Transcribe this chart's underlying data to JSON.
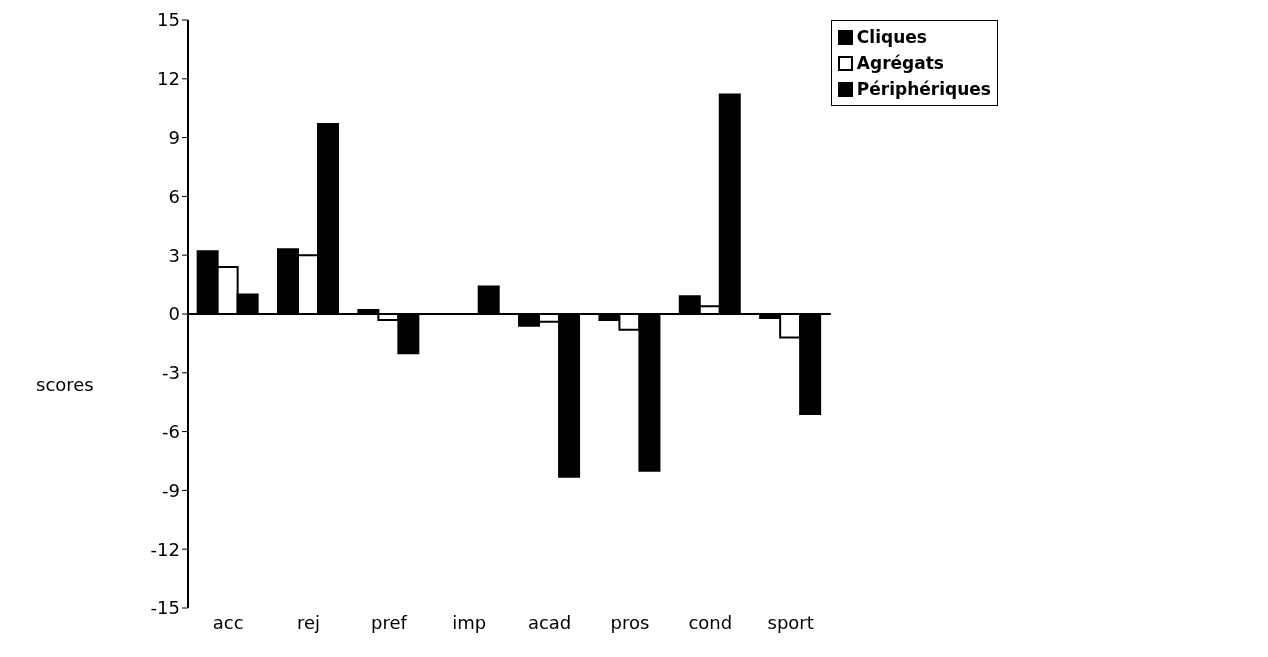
{
  "chart_data": {
    "type": "bar",
    "ylabel": "scores",
    "categories": [
      "acc",
      "rej",
      "pref",
      "imp",
      "acad",
      "pros",
      "cond",
      "sport"
    ],
    "series": [
      {
        "name": "Cliques",
        "color": "#000000",
        "values": [
          3.2,
          3.3,
          0.2,
          null,
          -0.6,
          -0.3,
          0.9,
          -0.2
        ]
      },
      {
        "name": "Agrégats",
        "color": "#ffffff",
        "values": [
          2.4,
          3.0,
          -0.3,
          null,
          -0.4,
          -0.8,
          0.4,
          -1.2
        ]
      },
      {
        "name": "Périphériques",
        "color": "#000000",
        "values": [
          1.0,
          9.7,
          -2.0,
          1.4,
          -8.3,
          -8.0,
          11.2,
          -5.1
        ]
      }
    ],
    "ylim": [
      -15,
      15
    ],
    "yticks": [
      -15,
      -12,
      -9,
      -6,
      -3,
      0,
      3,
      6,
      9,
      12,
      15
    ],
    "legend": "top right"
  }
}
